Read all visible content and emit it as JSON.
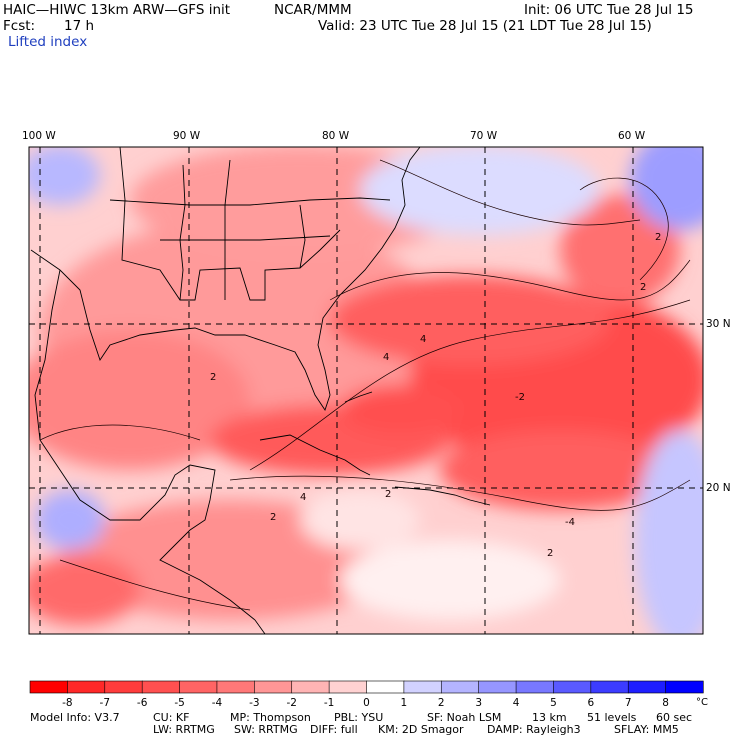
{
  "header": {
    "model_title": "HAIC—HIWC 13km ARW—GFS init",
    "org": "NCAR/MMM",
    "init": "Init: 06 UTC Tue 28 Jul 15",
    "fcst_label": "Fcst:",
    "fcst_value": "17 h",
    "valid": "Valid: 23 UTC Tue 28 Jul 15 (21 LDT Tue 28 Jul 15)",
    "field": "Lifted index"
  },
  "map": {
    "lon_labels": [
      "100 W",
      "90 W",
      "80 W",
      "70 W",
      "60 W"
    ],
    "lat_labels": [
      "30 N",
      "20 N"
    ],
    "contour_labels": [
      "2",
      "2",
      "4",
      "4",
      "-2",
      "-4",
      "2",
      "2",
      "4",
      "2",
      "2"
    ]
  },
  "colorbar": {
    "unit": "°C",
    "ticks": [
      "-8",
      "-7",
      "-6",
      "-5",
      "-4",
      "-3",
      "-2",
      "-1",
      "0",
      "1",
      "2",
      "3",
      "4",
      "5",
      "6",
      "7",
      "8"
    ],
    "colors": [
      "#ff0000",
      "#ff2828",
      "#ff3c3c",
      "#ff5050",
      "#ff6464",
      "#ff7878",
      "#ff9696",
      "#ffb4b4",
      "#ffd2d2",
      "#ffffff",
      "#d2d2ff",
      "#b4b4ff",
      "#9696ff",
      "#7878ff",
      "#5a5aff",
      "#3c3cff",
      "#1e1eff",
      "#0000ff"
    ]
  },
  "footer": {
    "line1": [
      "Model Info: V3.7",
      "CU: KF",
      "MP: Thompson",
      "PBL: YSU",
      "SF: Noah LSM",
      "13 km",
      "51 levels",
      "60 sec"
    ],
    "line2": [
      "LW: RRTMG",
      "SW: RRTMG",
      "DIFF: full",
      "KM: 2D Smagor",
      "DAMP: Rayleigh3",
      "SFLAY: MM5"
    ]
  }
}
